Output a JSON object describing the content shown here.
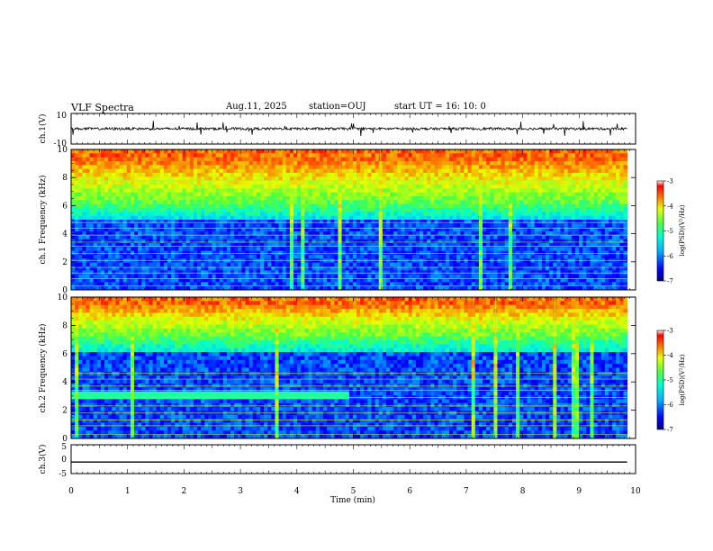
{
  "header": {
    "title": "VLF Spectra",
    "date": "Aug.11, 2025",
    "station": "station=OUJ",
    "start_ut": "start  UT =   16: 10: 0"
  },
  "chart_data": [
    {
      "type": "line",
      "panel": "ch1-waveform",
      "ylabel": "ch.1(V)",
      "ylim": [
        -10,
        10
      ],
      "yticks": [
        "10",
        "-10"
      ],
      "baseline_value": 0
    },
    {
      "type": "heatmap",
      "panel": "ch1-spectrogram",
      "ylabel": "ch.1 Frequency (kHz)",
      "ylim": [
        0,
        10
      ],
      "yticks": [
        "0",
        "2",
        "4",
        "6",
        "8",
        "10"
      ],
      "colorbar": {
        "label": "log(PSD)(V²/Hz)",
        "range": [
          -7,
          -3
        ],
        "ticks": [
          "-3",
          "-4",
          "-5",
          "-6",
          "-7"
        ]
      },
      "high_level_band_khz": [
        6.5,
        10
      ],
      "line_frequencies_khz": [
        0.3,
        0.8,
        1.2,
        1.6,
        2.1,
        2.6,
        3.1,
        3.4,
        3.9,
        4.4,
        4.8,
        7.8
      ]
    },
    {
      "type": "heatmap",
      "panel": "ch2-spectrogram",
      "ylabel": "ch.2 Frequency (kHz)",
      "ylim": [
        0,
        10
      ],
      "yticks": [
        "0",
        "2",
        "4",
        "6",
        "8",
        "10"
      ],
      "colorbar": {
        "label": "log(PSD)(V²/Hz)",
        "range": [
          -7,
          -3
        ],
        "ticks": [
          "-3",
          "-4",
          "-5",
          "-6",
          "-7"
        ]
      },
      "high_level_band_khz": [
        7.5,
        10
      ],
      "line_frequencies_khz": [
        0.3,
        0.9,
        1.3,
        1.8,
        2.3,
        2.9,
        3.4,
        3.7,
        4.2,
        4.6
      ],
      "band_edge_change_min": 4.9
    },
    {
      "type": "line",
      "panel": "ch3-waveform",
      "ylabel": "ch.3(V)",
      "ylim": [
        -5,
        5
      ],
      "yticks": [
        "5",
        "0",
        "-5"
      ],
      "baseline_value": -1
    }
  ],
  "xaxis": {
    "label": "Time (min)",
    "range": [
      0,
      10
    ],
    "ticks": [
      "0",
      "1",
      "2",
      "3",
      "4",
      "5",
      "6",
      "7",
      "8",
      "9",
      "10"
    ],
    "data_end_min": 9.85
  },
  "colors": {
    "frame": "#000000",
    "trace": "#000000",
    "spectro_low": "#00007f",
    "spectro_high": "#ff2a00",
    "line_marks": "#c8e632"
  }
}
